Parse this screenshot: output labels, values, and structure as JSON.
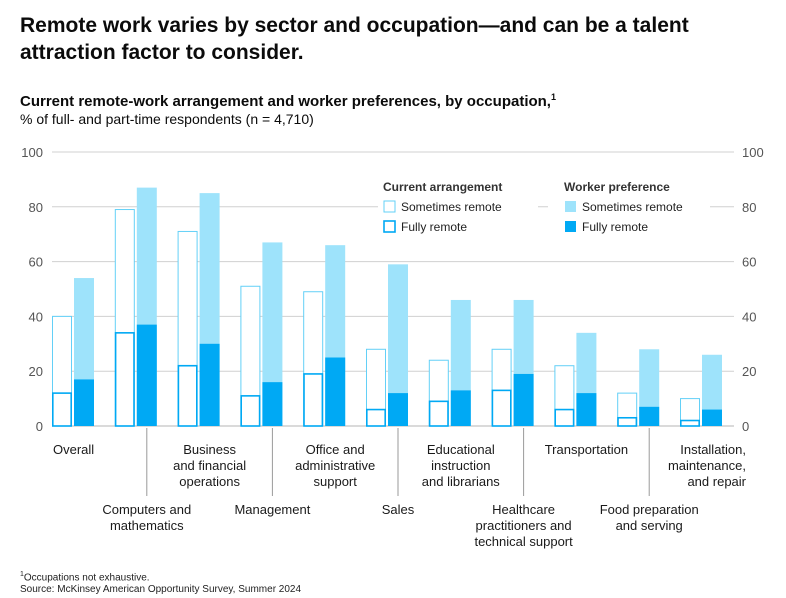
{
  "headline": "Remote work varies by sector and occupation—and can be a talent attraction factor to consider.",
  "subtitle": "Current remote-work arrangement and worker preferences, by occupation,",
  "subtitle_footnote_mark": "1",
  "subnote": "% of full- and part-time respondents (n = 4,710)",
  "legend": {
    "current_heading": "Current arrangement",
    "preference_heading": "Worker preference",
    "sometimes_remote": "Sometimes remote",
    "fully_remote": "Fully remote"
  },
  "footnote": {
    "mark": "1",
    "text": "Occupations not exhaustive.",
    "source": "Source: McKinsey American Opportunity Survey, Summer 2024"
  },
  "colors": {
    "preference_sometimes": "#9ee3fb",
    "preference_fully": "#00a9f4",
    "current_outline": "#63d0f7",
    "grid": "#d0d0d0"
  },
  "chart_data": {
    "type": "bar",
    "ylim": [
      0,
      100
    ],
    "y_ticks": [
      "0",
      "20",
      "40",
      "60",
      "80",
      "100"
    ],
    "grid": true,
    "legend_position": "top-right",
    "categories": [
      [
        "Overall"
      ],
      [
        "Computers and",
        "mathematics"
      ],
      [
        "Business",
        "and financial",
        "operations"
      ],
      [
        "Management"
      ],
      [
        "Office and",
        "administrative",
        "support"
      ],
      [
        "Sales"
      ],
      [
        "Educational",
        "instruction",
        "and librarians"
      ],
      [
        "Healthcare",
        "practitioners and",
        "technical support"
      ],
      [
        "Transportation"
      ],
      [
        "Food preparation",
        "and serving"
      ],
      [
        "Installation,",
        "maintenance,",
        "and repair"
      ]
    ],
    "series": [
      {
        "name": "Current arrangement — Sometimes remote",
        "values": [
          40,
          79,
          71,
          51,
          49,
          28,
          24,
          28,
          22,
          12,
          10
        ]
      },
      {
        "name": "Current arrangement — Fully remote",
        "values": [
          12,
          34,
          22,
          11,
          19,
          6,
          9,
          13,
          6,
          3,
          2
        ]
      },
      {
        "name": "Worker preference — Sometimes remote",
        "values": [
          54,
          87,
          85,
          67,
          66,
          59,
          46,
          46,
          34,
          28,
          26
        ]
      },
      {
        "name": "Worker preference — Fully remote",
        "values": [
          17,
          37,
          30,
          16,
          25,
          12,
          13,
          19,
          12,
          7,
          6
        ]
      }
    ]
  }
}
